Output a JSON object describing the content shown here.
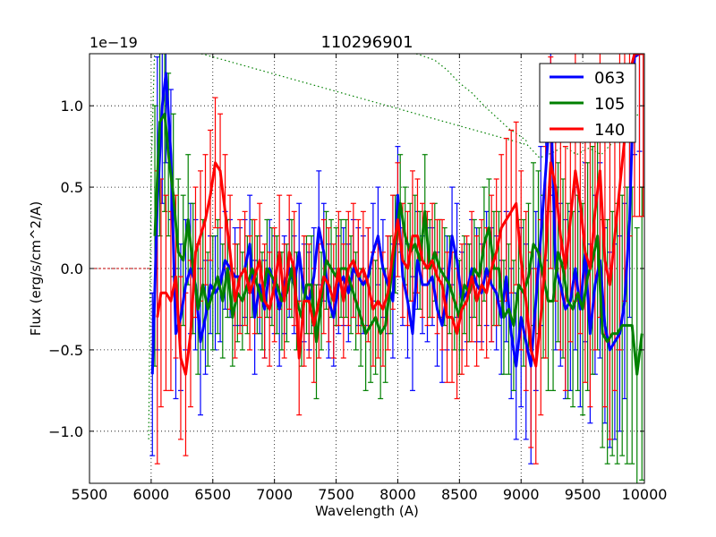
{
  "chart_data": {
    "type": "line",
    "title": "110296901",
    "xlabel": "Wavelength (A)",
    "ylabel": "Flux (erg/s/cm^2/A)",
    "y_scale_label": "1e−19",
    "xlim": [
      5500,
      10000
    ],
    "ylim": [
      -1.32,
      1.32
    ],
    "x_ticks": [
      5500,
      6000,
      6500,
      7000,
      7500,
      8000,
      8500,
      9000,
      9500,
      10000
    ],
    "x_tick_labels": [
      "5500",
      "6000",
      "6500",
      "7000",
      "7500",
      "8000",
      "8500",
      "9000",
      "9500",
      "10000"
    ],
    "y_ticks": [
      -1.0,
      -0.5,
      0.0,
      0.5,
      1.0
    ],
    "y_tick_labels": [
      "−1.0",
      "−0.5",
      "0.0",
      "0.5",
      "1.0"
    ],
    "grid": true,
    "legend_position": "top-right",
    "zero_line": {
      "y": 0.0,
      "x_range": [
        5500,
        6000
      ],
      "color": "#bf0000"
    },
    "green_dotted_curve": {
      "color": "#008000",
      "x": [
        5980,
        6000,
        6030,
        9050,
        9150,
        9250,
        9350,
        9450,
        9550,
        9650,
        9750,
        9850,
        9950
      ],
      "y": [
        -1.05,
        0.6,
        1.4,
        0.76,
        0.68,
        0.71,
        0.75,
        0.7,
        0.74,
        0.7,
        0.78,
        0.85,
        0.95
      ],
      "extra_x": [
        8150,
        8300,
        8400,
        8500,
        8600,
        8700,
        8800,
        8900,
        9000,
        9050
      ],
      "extra_y": [
        1.32,
        1.28,
        1.22,
        1.14,
        1.08,
        1.0,
        0.93,
        0.86,
        0.81,
        0.78
      ]
    },
    "series": [
      {
        "name": "063",
        "color": "#0000ff",
        "x": [
          6010,
          6050,
          6090,
          6120,
          6160,
          6200,
          6240,
          6280,
          6320,
          6360,
          6400,
          6440,
          6480,
          6520,
          6560,
          6600,
          6640,
          6680,
          6720,
          6760,
          6800,
          6840,
          6880,
          6920,
          6960,
          7000,
          7040,
          7080,
          7120,
          7160,
          7200,
          7240,
          7280,
          7320,
          7360,
          7400,
          7440,
          7480,
          7520,
          7560,
          7600,
          7640,
          7680,
          7720,
          7760,
          7800,
          7840,
          7880,
          7920,
          7960,
          8000,
          8040,
          8080,
          8120,
          8160,
          8200,
          8240,
          8280,
          8320,
          8360,
          8400,
          8440,
          8480,
          8520,
          8560,
          8600,
          8640,
          8680,
          8720,
          8760,
          8800,
          8840,
          8880,
          8920,
          8960,
          9000,
          9040,
          9080,
          9120,
          9160,
          9200,
          9240,
          9280,
          9320,
          9360,
          9400,
          9440,
          9480,
          9520,
          9560,
          9600,
          9640,
          9680,
          9720,
          9760,
          9800,
          9840,
          9880,
          9920,
          9960
        ],
        "y": [
          -0.65,
          0.4,
          1.0,
          1.2,
          0.7,
          -0.4,
          -0.3,
          -0.1,
          0.0,
          -0.1,
          -0.45,
          -0.3,
          -0.1,
          -0.15,
          -0.1,
          0.05,
          0.0,
          -0.05,
          -0.05,
          0.0,
          0.15,
          -0.3,
          -0.1,
          -0.25,
          0.0,
          -0.1,
          -0.25,
          -0.1,
          0.0,
          -0.1,
          0.1,
          -0.15,
          -0.2,
          -0.05,
          0.25,
          0.1,
          -0.2,
          -0.3,
          -0.1,
          -0.05,
          -0.15,
          0.0,
          -0.05,
          -0.1,
          -0.05,
          0.1,
          0.2,
          0.0,
          -0.1,
          -0.2,
          0.45,
          -0.05,
          -0.2,
          -0.4,
          0.05,
          -0.1,
          -0.1,
          -0.05,
          -0.25,
          -0.35,
          -0.15,
          0.2,
          0.05,
          -0.2,
          -0.15,
          0.0,
          -0.1,
          -0.15,
          0.0,
          -0.1,
          -0.15,
          -0.3,
          -0.05,
          -0.4,
          -0.6,
          -0.3,
          -0.45,
          -0.6,
          -0.2,
          0.2,
          0.6,
          1.05,
          0.0,
          -0.1,
          -0.25,
          -0.2,
          0.0,
          -0.25,
          0.1,
          -0.4,
          -0.1,
          0.05,
          -0.35,
          -0.5,
          -0.45,
          -0.4,
          -0.2,
          0.3,
          1.3,
          1.32
        ],
        "err": [
          0.5,
          0.9,
          0.6,
          0.55,
          0.4,
          0.4,
          0.45,
          0.4,
          0.4,
          0.4,
          0.45,
          0.35,
          0.3,
          0.35,
          0.35,
          0.3,
          0.3,
          0.3,
          0.3,
          0.3,
          0.3,
          0.35,
          0.3,
          0.3,
          0.3,
          0.3,
          0.35,
          0.3,
          0.3,
          0.3,
          0.3,
          0.3,
          0.3,
          0.3,
          0.35,
          0.3,
          0.35,
          0.3,
          0.3,
          0.3,
          0.3,
          0.3,
          0.3,
          0.3,
          0.3,
          0.3,
          0.3,
          0.3,
          0.3,
          0.35,
          0.3,
          0.3,
          0.35,
          0.35,
          0.3,
          0.3,
          0.35,
          0.3,
          0.35,
          0.35,
          0.35,
          0.3,
          0.35,
          0.3,
          0.3,
          0.3,
          0.35,
          0.3,
          0.35,
          0.35,
          0.35,
          0.35,
          0.4,
          0.4,
          0.45,
          0.55,
          0.6,
          0.6,
          0.55,
          0.55,
          0.55,
          0.6,
          0.5,
          0.5,
          0.55,
          0.55,
          0.5,
          0.6,
          0.55,
          0.55,
          0.55,
          0.6,
          0.6,
          0.6,
          0.6,
          0.6,
          0.6,
          0.6,
          0.6,
          0.6
        ]
      },
      {
        "name": "105",
        "color": "#008000",
        "x": [
          6030,
          6070,
          6110,
          6140,
          6180,
          6220,
          6260,
          6300,
          6340,
          6380,
          6420,
          6460,
          6500,
          6540,
          6580,
          6620,
          6660,
          6700,
          6740,
          6780,
          6820,
          6860,
          6900,
          6940,
          6980,
          7020,
          7060,
          7100,
          7140,
          7180,
          7220,
          7260,
          7300,
          7340,
          7380,
          7420,
          7460,
          7500,
          7540,
          7580,
          7620,
          7660,
          7700,
          7740,
          7780,
          7820,
          7860,
          7900,
          7940,
          7980,
          8020,
          8060,
          8100,
          8140,
          8180,
          8220,
          8260,
          8300,
          8340,
          8380,
          8420,
          8460,
          8500,
          8540,
          8580,
          8620,
          8660,
          8700,
          8740,
          8780,
          8820,
          8860,
          8900,
          8940,
          8980,
          9020,
          9060,
          9100,
          9140,
          9180,
          9220,
          9260,
          9300,
          9340,
          9380,
          9420,
          9460,
          9500,
          9540,
          9580,
          9620,
          9660,
          9700,
          9740,
          9780,
          9820,
          9860,
          9900,
          9940,
          9980
        ],
        "y": [
          0.2,
          0.9,
          0.95,
          0.7,
          0.45,
          0.1,
          0.05,
          0.3,
          0.0,
          -0.25,
          -0.1,
          -0.25,
          -0.15,
          -0.05,
          -0.2,
          0.0,
          -0.3,
          -0.15,
          -0.2,
          -0.1,
          0.0,
          -0.1,
          -0.2,
          0.0,
          -0.05,
          -0.1,
          -0.2,
          -0.15,
          0.0,
          -0.2,
          -0.3,
          -0.1,
          -0.1,
          -0.45,
          -0.2,
          0.05,
          0.0,
          -0.05,
          0.0,
          0.0,
          -0.1,
          -0.2,
          -0.3,
          -0.4,
          -0.35,
          -0.3,
          -0.4,
          -0.35,
          -0.1,
          0.15,
          0.4,
          0.2,
          0.1,
          0.15,
          0.05,
          0.35,
          0.0,
          0.1,
          0.0,
          -0.05,
          -0.1,
          -0.2,
          -0.3,
          -0.1,
          -0.15,
          0.0,
          -0.05,
          0.15,
          0.25,
          0.0,
          0.0,
          -0.3,
          -0.25,
          -0.35,
          -0.1,
          -0.15,
          -0.05,
          0.15,
          0.1,
          -0.05,
          -0.2,
          -0.2,
          0.1,
          0.0,
          -0.2,
          -0.25,
          -0.15,
          -0.25,
          -0.05,
          0.05,
          0.2,
          -0.4,
          -0.45,
          -0.4,
          -0.4,
          -0.35,
          -0.35,
          -0.35,
          -0.65,
          -0.4
        ],
        "err": [
          0.8,
          0.7,
          0.6,
          0.5,
          0.5,
          0.45,
          0.4,
          0.4,
          0.4,
          0.4,
          0.4,
          0.35,
          0.35,
          0.35,
          0.35,
          0.3,
          0.3,
          0.3,
          0.3,
          0.3,
          0.3,
          0.3,
          0.3,
          0.3,
          0.3,
          0.3,
          0.3,
          0.3,
          0.3,
          0.3,
          0.3,
          0.3,
          0.3,
          0.35,
          0.3,
          0.3,
          0.3,
          0.3,
          0.3,
          0.3,
          0.3,
          0.3,
          0.3,
          0.35,
          0.35,
          0.35,
          0.4,
          0.35,
          0.3,
          0.3,
          0.3,
          0.3,
          0.3,
          0.3,
          0.3,
          0.35,
          0.3,
          0.3,
          0.3,
          0.3,
          0.3,
          0.3,
          0.35,
          0.3,
          0.3,
          0.3,
          0.3,
          0.35,
          0.3,
          0.35,
          0.35,
          0.35,
          0.4,
          0.4,
          0.4,
          0.45,
          0.45,
          0.5,
          0.5,
          0.5,
          0.55,
          0.55,
          0.55,
          0.55,
          0.6,
          0.6,
          0.6,
          0.65,
          0.7,
          0.7,
          0.7,
          0.7,
          0.75,
          0.75,
          0.8,
          0.8,
          0.85,
          0.85,
          0.9,
          0.9
        ]
      },
      {
        "name": "140",
        "color": "#ff0000",
        "x": [
          6050,
          6080,
          6120,
          6160,
          6200,
          6240,
          6280,
          6320,
          6360,
          6400,
          6440,
          6480,
          6520,
          6560,
          6600,
          6640,
          6680,
          6720,
          6760,
          6800,
          6840,
          6880,
          6920,
          6960,
          7000,
          7040,
          7080,
          7120,
          7160,
          7200,
          7240,
          7280,
          7320,
          7360,
          7400,
          7440,
          7480,
          7520,
          7560,
          7600,
          7640,
          7680,
          7720,
          7760,
          7800,
          7840,
          7880,
          7920,
          7960,
          8000,
          8040,
          8080,
          8120,
          8160,
          8200,
          8240,
          8280,
          8320,
          8360,
          8400,
          8440,
          8480,
          8520,
          8560,
          8600,
          8640,
          8680,
          8720,
          8760,
          8800,
          8840,
          8880,
          8920,
          8960,
          9000,
          9040,
          9080,
          9120,
          9160,
          9200,
          9240,
          9280,
          9320,
          9360,
          9400,
          9440,
          9480,
          9520,
          9560,
          9600,
          9640,
          9680,
          9720,
          9760,
          9800,
          9840,
          9880,
          9920,
          9960,
          9990
        ],
        "y": [
          -0.3,
          -0.15,
          -0.15,
          -0.2,
          -0.05,
          -0.55,
          -0.65,
          -0.4,
          0.1,
          0.2,
          0.3,
          0.45,
          0.65,
          0.6,
          0.35,
          0.1,
          -0.2,
          -0.05,
          0.0,
          -0.15,
          -0.05,
          0.05,
          -0.2,
          -0.25,
          -0.1,
          0.1,
          -0.2,
          0.1,
          0.0,
          -0.55,
          -0.2,
          -0.2,
          -0.35,
          -0.2,
          -0.05,
          -0.1,
          -0.2,
          0.0,
          -0.2,
          0.0,
          0.05,
          -0.05,
          0.0,
          -0.1,
          -0.25,
          -0.2,
          -0.25,
          -0.15,
          0.1,
          0.3,
          0.05,
          0.0,
          0.2,
          0.2,
          0.05,
          0.0,
          0.05,
          -0.05,
          -0.1,
          -0.3,
          -0.3,
          -0.4,
          -0.25,
          -0.2,
          -0.05,
          -0.2,
          -0.1,
          -0.15,
          0.0,
          0.1,
          0.25,
          0.3,
          0.35,
          0.4,
          0.05,
          -0.2,
          -0.5,
          -0.6,
          -0.3,
          0.1,
          0.65,
          0.5,
          0.2,
          0.0,
          0.3,
          0.6,
          0.4,
          0.1,
          0.0,
          0.35,
          0.6,
          0.05,
          -0.1,
          0.2,
          0.5,
          0.8,
          1.2,
          1.32,
          1.32,
          1.32
        ],
        "err": [
          0.9,
          0.7,
          0.6,
          0.55,
          0.5,
          0.5,
          0.5,
          0.45,
          0.4,
          0.4,
          0.4,
          0.4,
          0.4,
          0.35,
          0.35,
          0.35,
          0.35,
          0.35,
          0.35,
          0.35,
          0.35,
          0.35,
          0.35,
          0.35,
          0.35,
          0.35,
          0.35,
          0.35,
          0.35,
          0.35,
          0.4,
          0.35,
          0.35,
          0.35,
          0.35,
          0.35,
          0.35,
          0.35,
          0.35,
          0.35,
          0.35,
          0.35,
          0.35,
          0.35,
          0.35,
          0.35,
          0.35,
          0.35,
          0.35,
          0.35,
          0.35,
          0.35,
          0.4,
          0.35,
          0.35,
          0.35,
          0.35,
          0.35,
          0.4,
          0.4,
          0.4,
          0.4,
          0.4,
          0.4,
          0.4,
          0.4,
          0.4,
          0.4,
          0.45,
          0.45,
          0.45,
          0.5,
          0.5,
          0.5,
          0.55,
          0.55,
          0.6,
          0.6,
          0.6,
          0.65,
          0.65,
          0.7,
          0.7,
          0.75,
          0.75,
          0.8,
          0.8,
          0.8,
          0.85,
          0.85,
          0.9,
          0.9,
          0.95,
          0.95,
          1.0,
          1.0,
          1.0,
          1.0,
          1.0,
          1.0
        ]
      }
    ]
  }
}
